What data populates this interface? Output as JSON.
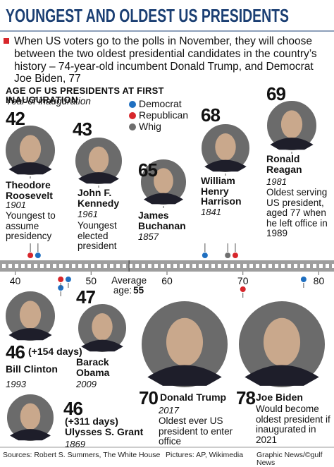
{
  "header": {
    "title": "YOUNGEST AND OLDEST US PRESIDENTS",
    "intro": "When US voters go to the polls in November, they will choose between the two oldest presidential candidates in the country’s history – 74-year-old incumbent Donald Trump, and Democrat Joe Biden, 77"
  },
  "section": {
    "title": "AGE OF US PRESIDENTS AT FIRST INAUGURATION",
    "subtitle": "Year of inauguration"
  },
  "legend": [
    {
      "label": "Democrat",
      "color": "#1f6fc0"
    },
    {
      "label": "Republican",
      "color": "#d7262b"
    },
    {
      "label": "Whig",
      "color": "#6e6e6e"
    }
  ],
  "axis": {
    "lim": [
      38,
      82
    ],
    "ticks": [
      40,
      50,
      60,
      70,
      80
    ],
    "average_label": [
      "Average",
      "age:"
    ],
    "average": 55
  },
  "presidents": [
    {
      "age": 42,
      "name": "Theodore Roosevelt",
      "year": "1901",
      "note": "Youngest to assume presidency",
      "party": 1
    },
    {
      "age": 43,
      "name": "John F. Kennedy",
      "year": "1961",
      "note": "Youngest elected president",
      "party": 0
    },
    {
      "age": 65,
      "name": "James Buchanan",
      "year": "1857",
      "party": 0
    },
    {
      "age": 68,
      "name": "William Henry Harrison",
      "year": "1841",
      "party": 2
    },
    {
      "age": 69,
      "name": "Ronald Reagan",
      "year": "1981",
      "note": "Oldest serving US president, aged 77 when he left office in 1989",
      "party": 1
    },
    {
      "age": 46,
      "extra": "(+154 days)",
      "name": "Bill Clinton",
      "year": "1993",
      "party": 0
    },
    {
      "age": 47,
      "name": "Barack Obama",
      "year": "2009",
      "party": 0
    },
    {
      "age": 70,
      "name": "Donald Trump",
      "year": "2017",
      "note": "Oldest ever US president to enter office",
      "party": 1
    },
    {
      "age": 78,
      "name": "Joe Biden",
      "note": "Would become oldest president if inaugurated in 2021",
      "party": 0
    },
    {
      "age": 46,
      "extra": "(+311 days)",
      "name": "Ulysses S. Grant",
      "year": "1869",
      "party": 1
    }
  ],
  "footer": {
    "sources": "Sources: Robert S. Summers, The White House",
    "pictures": "Pictures: AP, Wikimedia",
    "credit": "Graphic News/©gulf News"
  }
}
